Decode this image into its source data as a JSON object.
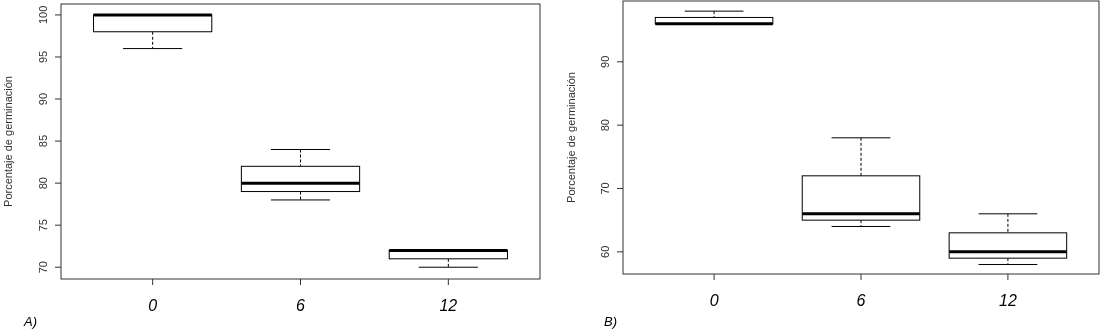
{
  "chart_data": [
    {
      "type": "box",
      "categories": [
        "0",
        "6",
        "12"
      ],
      "ylabel": "Porcentaje de germinación",
      "ylim": [
        68.6,
        101.3
      ],
      "yticks": [
        70,
        75,
        80,
        85,
        90,
        95,
        100
      ],
      "grid": false,
      "annotations": [
        "A)"
      ],
      "boxes": [
        {
          "low": 96,
          "q1": 98,
          "median": 100,
          "q3": 100,
          "high": 100
        },
        {
          "low": 78,
          "q1": 79,
          "median": 80,
          "q3": 82,
          "high": 84
        },
        {
          "low": 70,
          "q1": 71,
          "median": 72,
          "q3": 72,
          "high": 72
        }
      ]
    },
    {
      "type": "box",
      "categories": [
        "0",
        "6",
        "12"
      ],
      "ylabel": "Porcentaje de germinación",
      "ylim": [
        56.5,
        99.6
      ],
      "yticks": [
        60,
        70,
        80,
        90
      ],
      "grid": false,
      "annotations": [
        "B)"
      ],
      "boxes": [
        {
          "low": 96,
          "q1": 96,
          "median": 96,
          "q3": 97,
          "high": 98
        },
        {
          "low": 64,
          "q1": 65,
          "median": 66,
          "q3": 72,
          "high": 78
        },
        {
          "low": 58,
          "q1": 59,
          "median": 60,
          "q3": 63,
          "high": 66
        }
      ]
    }
  ]
}
